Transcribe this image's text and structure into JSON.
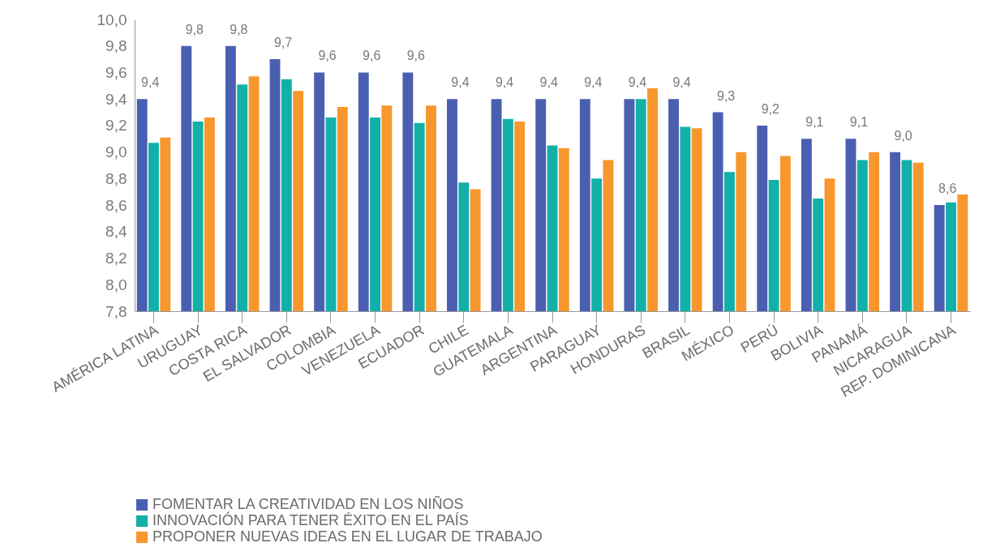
{
  "chart_data": {
    "type": "bar",
    "categories": [
      "AMÉRICA LATINA",
      "URUGUAY",
      "COSTA RICA",
      "EL SALVADOR",
      "COLOMBIA",
      "VENEZUELA",
      "ECUADOR",
      "CHILE",
      "GUATEMALA",
      "ARGENTINA",
      "PARAGUAY",
      "HONDURAS",
      "BRASIL",
      "MÉXICO",
      "PERÚ",
      "BOLIVIA",
      "PANAMÁ",
      "NICARAGUA",
      "REP. DOMINICANA"
    ],
    "series": [
      {
        "name": "FOMENTAR LA CREATIVIDAD EN LOS NIÑOS",
        "color": "#4a5fb0",
        "values": [
          9.4,
          9.8,
          9.8,
          9.7,
          9.6,
          9.6,
          9.6,
          9.4,
          9.4,
          9.4,
          9.4,
          9.4,
          9.4,
          9.3,
          9.2,
          9.1,
          9.1,
          9.0,
          8.6
        ],
        "value_labels": [
          "9,4",
          "9,8",
          "9,8",
          "9,7",
          "9,6",
          "9,6",
          "9,6",
          "9,4",
          "9,4",
          "9,4",
          "9,4",
          "9,4",
          "9,4",
          "9,3",
          "9,2",
          "9,1",
          "9,1",
          "9,0",
          "8,6"
        ]
      },
      {
        "name": "INNOVACIÓN PARA TENER ÉXITO EN EL PAÍS",
        "color": "#12b0a8",
        "values": [
          9.07,
          9.23,
          9.51,
          9.55,
          9.26,
          9.26,
          9.22,
          8.77,
          9.25,
          9.05,
          8.8,
          9.4,
          9.19,
          8.85,
          8.79,
          8.65,
          8.94,
          8.94,
          8.62
        ]
      },
      {
        "name": "PROPONER NUEVAS IDEAS EN EL LUGAR DE TRABAJO",
        "color": "#f7972e",
        "values": [
          9.11,
          9.26,
          9.57,
          9.46,
          9.34,
          9.35,
          9.35,
          8.72,
          9.23,
          9.03,
          8.94,
          9.48,
          9.18,
          9.0,
          8.97,
          8.8,
          9.0,
          8.92,
          8.68
        ]
      }
    ],
    "ylim": [
      7.8,
      10.0
    ],
    "yticks": [
      {
        "value": 7.8,
        "label": "7,8"
      },
      {
        "value": 8.0,
        "label": "8,0"
      },
      {
        "value": 8.2,
        "label": "8,2"
      },
      {
        "value": 8.4,
        "label": "8,4"
      },
      {
        "value": 8.6,
        "label": "8,6"
      },
      {
        "value": 8.8,
        "label": "8,8"
      },
      {
        "value": 9.0,
        "label": "9,0"
      },
      {
        "value": 9.2,
        "label": "9,2"
      },
      {
        "value": 9.4,
        "label": "9,4"
      },
      {
        "value": 9.6,
        "label": "9,6"
      },
      {
        "value": 9.8,
        "label": "9,8"
      },
      {
        "value": 10.0,
        "label": "10,0"
      }
    ],
    "grid": false,
    "legend": "bottom left"
  }
}
